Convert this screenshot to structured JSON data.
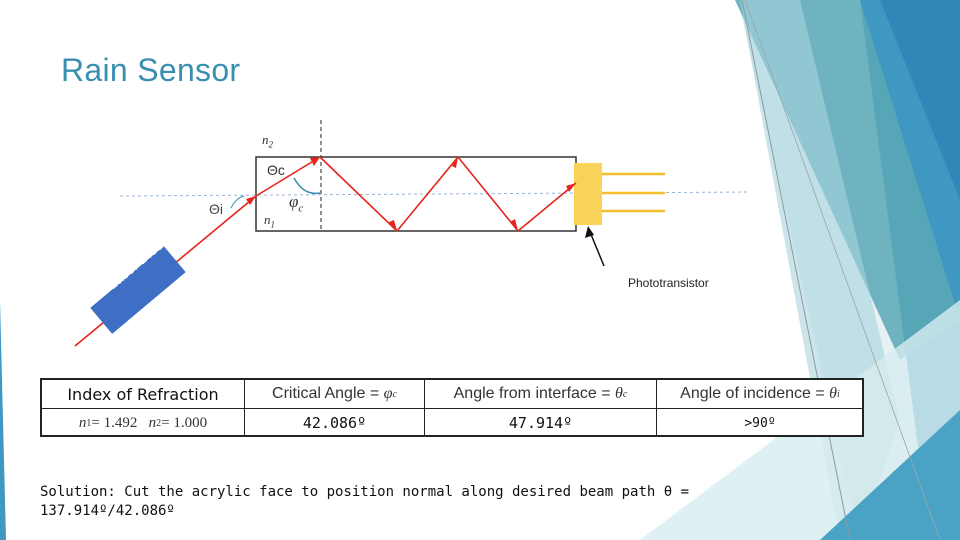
{
  "title": "Rain Sensor",
  "diagram": {
    "n2": "n",
    "n2_sub": "2",
    "n1": "n",
    "n1_sub": "1",
    "theta_c": "Θc",
    "phi_c": "φ",
    "phi_c_sub": "c",
    "theta_i": "Θi",
    "laser_label": "Laser Diode",
    "phototransistor_label": "Phototransistor"
  },
  "table": {
    "headers": {
      "index": "Index of Refraction",
      "critical": "Critical Angle = ",
      "critical_sym": "φ",
      "critical_sub": "c",
      "interface": "Angle from interface = ",
      "interface_sym": "θ",
      "interface_sub": "c",
      "incidence": "Angle of incidence = ",
      "incidence_sym": "θ",
      "incidence_sub": "i"
    },
    "row": {
      "n1_label": "n",
      "n1_sub": "1",
      "n1_value": " = 1.492",
      "n2_label": "n",
      "n2_sub": "2",
      "n2_value": "= 1.000",
      "critical_value": "42.086º",
      "interface_value": "47.914º",
      "incidence_value": ">90º"
    }
  },
  "solution": {
    "line1": "Solution: Cut the acrylic face to position normal along desired beam path θ =",
    "line2": "137.914º/42.086º"
  },
  "colors": {
    "title": "#3a8fb0",
    "beam": "#e5241b",
    "laser": "#3f6fc4",
    "phototransistor": "#f9d25a",
    "accent_teal": "#5aa8b6"
  }
}
